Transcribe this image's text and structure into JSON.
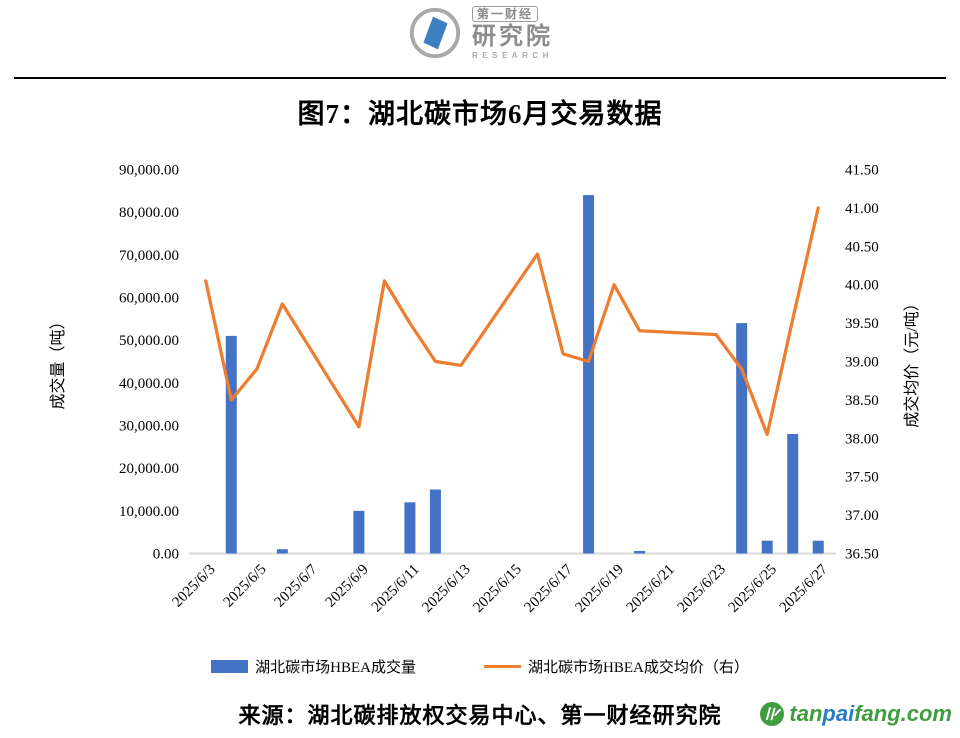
{
  "header": {
    "brand_top": "第一财经",
    "brand_main": "研究院",
    "brand_sub": "RESEARCH"
  },
  "chart_data": {
    "type": "combo-bar-line",
    "title": "图7：湖北碳市场6月交易数据",
    "x_tick_labels": [
      "2025/6/3",
      "2025/6/5",
      "2025/6/7",
      "2025/6/9",
      "2025/6/11",
      "2025/6/13",
      "2025/6/15",
      "2025/6/17",
      "2025/6/19",
      "2025/6/21",
      "2025/6/23",
      "2025/6/25",
      "2025/6/27"
    ],
    "n_slots": 25,
    "categories": [
      "2025/6/3",
      "2025/6/4",
      "2025/6/5",
      "2025/6/6",
      "2025/6/9",
      "2025/6/10",
      "2025/6/11",
      "2025/6/12",
      "2025/6/13",
      "2025/6/16",
      "2025/6/17",
      "2025/6/18",
      "2025/6/19",
      "2025/6/20",
      "2025/6/23",
      "2025/6/24",
      "2025/6/25",
      "2025/6/26",
      "2025/6/27"
    ],
    "slot_index": [
      0,
      1,
      2,
      3,
      6,
      7,
      8,
      9,
      10,
      13,
      14,
      15,
      16,
      17,
      20,
      21,
      22,
      23,
      24
    ],
    "series": [
      {
        "name": "湖北碳市场HBEA成交量",
        "type": "bar",
        "axis": "left",
        "color": "#4472C4",
        "values": [
          0,
          51000,
          0,
          1000,
          10000,
          0,
          12000,
          15000,
          0,
          0,
          0,
          84000,
          0,
          600,
          0,
          54000,
          3000,
          28000,
          3000
        ]
      },
      {
        "name": "湖北碳市场HBEA成交均价（右）",
        "type": "line",
        "axis": "right",
        "color": "#ED7D31",
        "values": [
          40.05,
          38.5,
          38.9,
          39.75,
          38.15,
          40.05,
          39.5,
          39.0,
          38.95,
          40.4,
          39.1,
          39.0,
          40.0,
          39.4,
          39.35,
          38.9,
          38.05,
          39.55,
          41.0
        ]
      }
    ],
    "left_axis": {
      "title": "成交量（吨）",
      "min": 0,
      "max": 90000,
      "step": 10000,
      "tick_labels": [
        "90,000.00",
        "80,000.00",
        "70,000.00",
        "60,000.00",
        "50,000.00",
        "40,000.00",
        "30,000.00",
        "20,000.00",
        "10,000.00",
        "0.00"
      ]
    },
    "right_axis": {
      "title": "成交均价（元/吨）",
      "min": 36.5,
      "max": 41.5,
      "step": 0.5,
      "tick_labels": [
        "41.50",
        "41.00",
        "40.50",
        "40.00",
        "39.50",
        "39.00",
        "38.50",
        "38.00",
        "37.50",
        "37.00",
        "36.50"
      ]
    },
    "grid": "off",
    "legend_position": "bottom",
    "baseline_color": "#D9D9D9"
  },
  "footer": {
    "source": "来源：湖北碳排放权交易中心、第一财经研究院",
    "site": {
      "part_green1": "tan",
      "part_blue": "pai",
      "part_green2": "fang.com",
      "green": "#3F9C3F",
      "blue": "#2B7BC7"
    }
  }
}
